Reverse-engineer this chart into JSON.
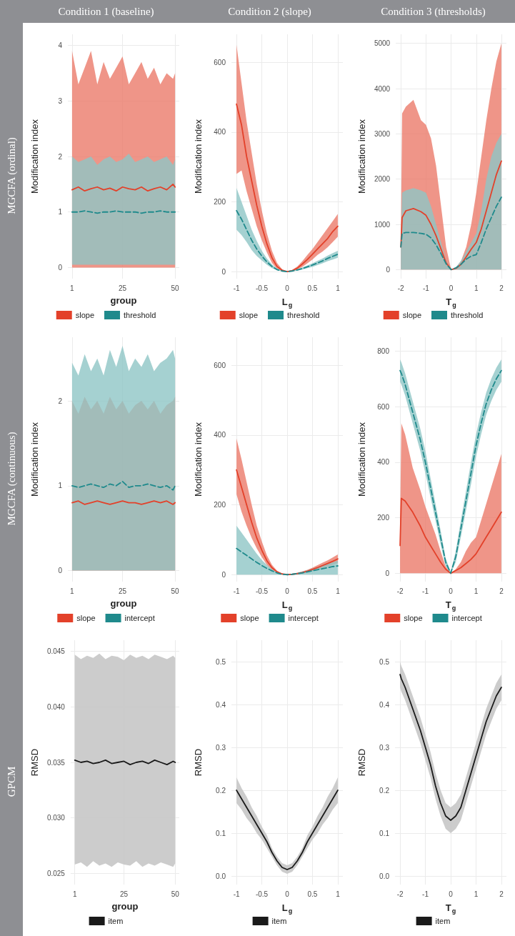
{
  "chart_data": [
    {
      "type": "line",
      "title": "Condition 1 (baseline)",
      "annotations": [
        "MGCFA (ordinal)"
      ],
      "xlabel": "group",
      "ylabel": "Modification index",
      "x": [
        1,
        4,
        7,
        10,
        13,
        16,
        19,
        22,
        25,
        28,
        31,
        34,
        37,
        40,
        43,
        46,
        49,
        50
      ],
      "xlim": [
        -1,
        52
      ],
      "xticks": [
        1,
        25,
        50
      ],
      "ylim": [
        -0.2,
        4.2
      ],
      "yticks": [
        0,
        1,
        2,
        3,
        4
      ],
      "grid": true,
      "legend": "bottom",
      "series": [
        {
          "name": "slope",
          "color": "#e3412a",
          "line_style": "solid",
          "values": [
            1.4,
            1.45,
            1.38,
            1.42,
            1.45,
            1.4,
            1.43,
            1.38,
            1.45,
            1.42,
            1.4,
            1.45,
            1.38,
            1.42,
            1.45,
            1.4,
            1.5,
            1.45
          ],
          "lower": [
            0,
            0,
            0,
            0,
            0,
            0,
            0,
            0,
            0,
            0,
            0,
            0,
            0,
            0,
            0,
            0,
            0,
            0
          ],
          "upper": [
            3.9,
            3.3,
            3.6,
            3.9,
            3.3,
            3.7,
            3.4,
            3.6,
            3.8,
            3.3,
            3.5,
            3.7,
            3.4,
            3.6,
            3.3,
            3.5,
            3.4,
            3.5
          ]
        },
        {
          "name": "threshold",
          "color": "#1f8a8c",
          "line_style": "dashed",
          "values": [
            1.0,
            1.0,
            1.02,
            1.0,
            0.98,
            1.0,
            1.0,
            1.02,
            1.0,
            1.0,
            1.0,
            0.98,
            1.0,
            1.0,
            1.02,
            1.0,
            1.0,
            1.0
          ],
          "lower": [
            0.05,
            0.05,
            0.05,
            0.05,
            0.05,
            0.05,
            0.05,
            0.05,
            0.05,
            0.05,
            0.05,
            0.05,
            0.05,
            0.05,
            0.05,
            0.05,
            0.05,
            0.05
          ],
          "upper": [
            2.0,
            1.9,
            1.95,
            2.0,
            1.85,
            1.95,
            2.0,
            1.9,
            1.95,
            2.05,
            1.9,
            1.95,
            2.0,
            1.9,
            1.95,
            2.0,
            1.85,
            1.95
          ]
        }
      ]
    },
    {
      "type": "line",
      "title": "Condition 2 (slope)",
      "xlabel": "L$_{g}$",
      "ylabel": "Modification index",
      "x": [
        -1,
        -0.9,
        -0.8,
        -0.7,
        -0.6,
        -0.5,
        -0.4,
        -0.3,
        -0.2,
        -0.1,
        0,
        0.1,
        0.2,
        0.3,
        0.4,
        0.5,
        0.6,
        0.7,
        0.8,
        0.9,
        1
      ],
      "xlim": [
        -1.1,
        1.1
      ],
      "xticks": [
        -1,
        -0.5,
        0,
        0.5,
        1
      ],
      "ylim": [
        -20,
        680
      ],
      "yticks": [
        0,
        200,
        400,
        600
      ],
      "grid": true,
      "legend": "bottom",
      "series": [
        {
          "name": "slope",
          "color": "#e3412a",
          "line_style": "solid",
          "values": [
            480,
            420,
            330,
            260,
            190,
            130,
            80,
            40,
            15,
            4,
            0,
            3,
            10,
            22,
            35,
            50,
            65,
            80,
            95,
            115,
            130
          ],
          "lower": [
            280,
            290,
            230,
            180,
            130,
            90,
            55,
            25,
            8,
            2,
            0,
            1,
            6,
            14,
            24,
            35,
            48,
            58,
            70,
            85,
            100
          ],
          "upper": [
            650,
            540,
            430,
            340,
            250,
            175,
            110,
            60,
            25,
            7,
            1,
            5,
            15,
            30,
            48,
            65,
            85,
            105,
            125,
            145,
            165
          ]
        },
        {
          "name": "threshold",
          "color": "#1f8a8c",
          "line_style": "dashed",
          "values": [
            175,
            150,
            120,
            90,
            65,
            45,
            28,
            15,
            6,
            2,
            0,
            2,
            5,
            9,
            14,
            19,
            25,
            31,
            38,
            44,
            50
          ],
          "lower": [
            120,
            105,
            85,
            62,
            45,
            32,
            20,
            10,
            4,
            1,
            0,
            1,
            3,
            6,
            10,
            14,
            19,
            24,
            30,
            35,
            40
          ],
          "upper": [
            240,
            200,
            160,
            120,
            88,
            60,
            38,
            21,
            9,
            3,
            1,
            3,
            7,
            12,
            18,
            24,
            31,
            38,
            46,
            53,
            60
          ]
        }
      ]
    },
    {
      "type": "line",
      "title": "Condition 3 (thresholds)",
      "xlabel": "T$_{g}$",
      "ylabel": "Modification index",
      "x": [
        -2,
        -1.95,
        -1.8,
        -1.5,
        -1.2,
        -1,
        -0.8,
        -0.6,
        -0.4,
        -0.2,
        0,
        0.2,
        0.4,
        0.6,
        0.8,
        1,
        1.2,
        1.4,
        1.6,
        1.8,
        2
      ],
      "xlim": [
        -2.2,
        2.2
      ],
      "xticks": [
        -2,
        -1,
        0,
        1,
        2
      ],
      "ylim": [
        -200,
        5200
      ],
      "yticks": [
        0,
        1000,
        2000,
        3000,
        4000,
        5000
      ],
      "grid": true,
      "legend": "bottom",
      "series": [
        {
          "name": "slope",
          "color": "#e3412a",
          "line_style": "solid",
          "values": [
            500,
            1150,
            1300,
            1350,
            1280,
            1200,
            1000,
            750,
            450,
            150,
            0,
            30,
            120,
            280,
            450,
            600,
            900,
            1300,
            1700,
            2100,
            2400
          ],
          "lower": [
            0,
            0,
            0,
            0,
            0,
            0,
            0,
            0,
            0,
            0,
            0,
            0,
            0,
            0,
            0,
            0,
            0,
            0,
            0,
            0,
            0
          ],
          "upper": [
            600,
            3450,
            3600,
            3750,
            3300,
            3200,
            2900,
            2300,
            1400,
            500,
            0,
            50,
            200,
            500,
            1000,
            1700,
            2500,
            3300,
            4000,
            4600,
            5000
          ]
        },
        {
          "name": "threshold",
          "color": "#1f8a8c",
          "line_style": "dashed",
          "values": [
            500,
            800,
            820,
            820,
            800,
            780,
            700,
            550,
            350,
            130,
            0,
            40,
            120,
            230,
            300,
            330,
            600,
            900,
            1150,
            1400,
            1600
          ],
          "lower": [
            0,
            0,
            0,
            0,
            0,
            0,
            0,
            0,
            0,
            0,
            0,
            0,
            0,
            0,
            0,
            0,
            0,
            0,
            0,
            0,
            0
          ],
          "upper": [
            600,
            1700,
            1750,
            1800,
            1750,
            1700,
            1400,
            1000,
            600,
            200,
            0,
            60,
            200,
            400,
            600,
            800,
            1300,
            2000,
            2500,
            2800,
            3000
          ]
        }
      ]
    },
    {
      "type": "line",
      "annotations": [
        "MGCFA (continuous)"
      ],
      "xlabel": "group",
      "ylabel": "Modification index",
      "x": [
        1,
        4,
        7,
        10,
        13,
        16,
        19,
        22,
        25,
        28,
        31,
        34,
        37,
        40,
        43,
        46,
        49,
        50
      ],
      "xlim": [
        -1,
        52
      ],
      "xticks": [
        1,
        25,
        50
      ],
      "ylim": [
        -0.13,
        2.75
      ],
      "yticks": [
        0,
        1,
        2
      ],
      "grid": true,
      "legend": "bottom",
      "series": [
        {
          "name": "slope",
          "color": "#e3412a",
          "line_style": "solid",
          "values": [
            0.8,
            0.82,
            0.78,
            0.8,
            0.82,
            0.8,
            0.78,
            0.8,
            0.82,
            0.8,
            0.8,
            0.78,
            0.8,
            0.82,
            0.8,
            0.82,
            0.78,
            0.8
          ],
          "lower": [
            0,
            0,
            0,
            0,
            0,
            0,
            0,
            0,
            0,
            0,
            0,
            0,
            0,
            0,
            0,
            0,
            0,
            0
          ],
          "upper": [
            2.0,
            1.85,
            2.05,
            1.9,
            2.0,
            1.85,
            2.05,
            1.9,
            2.0,
            1.85,
            1.95,
            2.0,
            1.9,
            2.0,
            1.85,
            1.95,
            2.0,
            2.05
          ]
        },
        {
          "name": "intercept",
          "color": "#1f8a8c",
          "line_style": "dashed",
          "values": [
            1.0,
            0.98,
            1.0,
            1.02,
            1.0,
            0.98,
            1.02,
            1.0,
            1.05,
            0.98,
            1.0,
            1.0,
            1.02,
            1.0,
            0.98,
            1.0,
            0.95,
            1.0
          ],
          "lower": [
            0,
            0,
            0,
            0,
            0,
            0,
            0,
            0,
            0,
            0,
            0,
            0,
            0,
            0,
            0,
            0,
            0,
            0
          ],
          "upper": [
            2.45,
            2.3,
            2.55,
            2.35,
            2.5,
            2.3,
            2.6,
            2.4,
            2.65,
            2.35,
            2.5,
            2.4,
            2.55,
            2.35,
            2.45,
            2.5,
            2.6,
            2.5
          ]
        }
      ]
    },
    {
      "type": "line",
      "xlabel": "L$_{g}$",
      "ylabel": "Modification index",
      "x": [
        -1,
        -0.9,
        -0.8,
        -0.7,
        -0.6,
        -0.5,
        -0.4,
        -0.3,
        -0.2,
        -0.1,
        0,
        0.1,
        0.2,
        0.3,
        0.4,
        0.5,
        0.6,
        0.7,
        0.8,
        0.9,
        1
      ],
      "xlim": [
        -1.1,
        1.1
      ],
      "xticks": [
        -1,
        -0.5,
        0,
        0.5,
        1
      ],
      "ylim": [
        -20,
        680
      ],
      "yticks": [
        0,
        200,
        400,
        600
      ],
      "grid": true,
      "legend": "bottom",
      "series": [
        {
          "name": "slope",
          "color": "#e3412a",
          "line_style": "solid",
          "values": [
            300,
            250,
            200,
            150,
            105,
            70,
            40,
            20,
            8,
            2,
            0,
            1,
            3,
            6,
            10,
            15,
            20,
            26,
            32,
            38,
            45
          ],
          "lower": [
            230,
            180,
            140,
            105,
            75,
            50,
            28,
            13,
            5,
            1,
            0,
            0,
            2,
            4,
            7,
            10,
            14,
            18,
            23,
            28,
            33
          ],
          "upper": [
            390,
            330,
            265,
            200,
            140,
            95,
            55,
            28,
            11,
            3,
            1,
            2,
            5,
            9,
            14,
            20,
            27,
            34,
            41,
            49,
            58
          ]
        },
        {
          "name": "intercept",
          "color": "#1f8a8c",
          "line_style": "dashed",
          "values": [
            75,
            65,
            55,
            45,
            35,
            26,
            18,
            11,
            5,
            1,
            0,
            1,
            3,
            5,
            8,
            11,
            14,
            17,
            20,
            23,
            25
          ],
          "lower": [
            0,
            0,
            0,
            0,
            0,
            0,
            0,
            0,
            0,
            0,
            0,
            0,
            0,
            0,
            0,
            0,
            0,
            0,
            0,
            0,
            0
          ],
          "upper": [
            140,
            120,
            100,
            80,
            60,
            42,
            28,
            16,
            7,
            2,
            1,
            2,
            5,
            9,
            13,
            18,
            22,
            27,
            31,
            36,
            40
          ]
        }
      ]
    },
    {
      "type": "line",
      "xlabel": "T$_{g}$",
      "ylabel": "Modification index",
      "x": [
        -2,
        -1.95,
        -1.8,
        -1.5,
        -1.2,
        -1,
        -0.8,
        -0.6,
        -0.4,
        -0.2,
        0,
        0.2,
        0.4,
        0.6,
        0.8,
        1,
        1.2,
        1.4,
        1.6,
        1.8,
        2
      ],
      "xlim": [
        -2.2,
        2.2
      ],
      "xticks": [
        -2,
        -1,
        0,
        1,
        2
      ],
      "ylim": [
        -30,
        850
      ],
      "yticks": [
        0,
        200,
        400,
        600,
        800
      ],
      "grid": true,
      "legend": "bottom",
      "series": [
        {
          "name": "slope",
          "color": "#e3412a",
          "line_style": "solid",
          "values": [
            100,
            270,
            260,
            220,
            170,
            130,
            100,
            70,
            40,
            15,
            0,
            10,
            20,
            35,
            50,
            70,
            100,
            130,
            160,
            190,
            220
          ],
          "lower": [
            0,
            0,
            0,
            0,
            0,
            0,
            0,
            0,
            0,
            0,
            0,
            0,
            0,
            0,
            0,
            0,
            0,
            0,
            0,
            0,
            0
          ],
          "upper": [
            160,
            540,
            500,
            380,
            300,
            240,
            190,
            140,
            80,
            25,
            0,
            15,
            40,
            80,
            110,
            130,
            190,
            250,
            310,
            370,
            430
          ]
        },
        {
          "name": "intercept",
          "color": "#1f8a8c",
          "line_style": "dashed",
          "values": [
            730,
            720,
            680,
            580,
            480,
            400,
            310,
            220,
            130,
            40,
            0,
            60,
            160,
            260,
            360,
            460,
            540,
            610,
            660,
            700,
            730
          ],
          "lower": [
            690,
            680,
            640,
            540,
            440,
            360,
            275,
            190,
            105,
            25,
            0,
            40,
            130,
            225,
            320,
            420,
            500,
            570,
            620,
            660,
            690
          ],
          "upper": [
            770,
            760,
            720,
            620,
            520,
            440,
            345,
            250,
            155,
            55,
            5,
            80,
            190,
            295,
            400,
            500,
            580,
            650,
            700,
            740,
            770
          ]
        }
      ]
    },
    {
      "type": "line",
      "annotations": [
        "GPCM"
      ],
      "xlabel": "group",
      "ylabel": "RMSD",
      "x": [
        1,
        4,
        7,
        10,
        13,
        16,
        19,
        22,
        25,
        28,
        31,
        34,
        37,
        40,
        43,
        46,
        49,
        50
      ],
      "xlim": [
        -1,
        52
      ],
      "xticks": [
        1,
        25,
        50
      ],
      "ylim": [
        0.024,
        0.046
      ],
      "yticks": [
        0.025,
        {
          "value": 0.03,
          "label": "0.030"
        },
        0.035,
        {
          "value": 0.04,
          "label": "0.040"
        },
        0.045
      ],
      "grid": true,
      "legend": "bottom",
      "series": [
        {
          "name": "item",
          "color": "#1a1a1a",
          "line_style": "solid",
          "values": [
            0.0352,
            0.035,
            0.0351,
            0.0349,
            0.035,
            0.0352,
            0.0349,
            0.035,
            0.0351,
            0.0348,
            0.035,
            0.0351,
            0.0349,
            0.0352,
            0.035,
            0.0348,
            0.0351,
            0.035
          ],
          "lower": [
            0.0258,
            0.026,
            0.0256,
            0.0261,
            0.0257,
            0.0259,
            0.0256,
            0.026,
            0.0258,
            0.0257,
            0.0261,
            0.0256,
            0.0259,
            0.0257,
            0.026,
            0.0258,
            0.0256,
            0.0259
          ],
          "upper": [
            0.0447,
            0.0443,
            0.0446,
            0.0444,
            0.0448,
            0.0443,
            0.0446,
            0.0445,
            0.0442,
            0.0447,
            0.0444,
            0.0446,
            0.0443,
            0.0447,
            0.0445,
            0.0443,
            0.0446,
            0.0444
          ]
        }
      ]
    },
    {
      "type": "line",
      "xlabel": "L$_{g}$",
      "ylabel": "RMSD",
      "x": [
        -1,
        -0.9,
        -0.8,
        -0.7,
        -0.6,
        -0.5,
        -0.4,
        -0.3,
        -0.2,
        -0.1,
        0,
        0.1,
        0.2,
        0.3,
        0.4,
        0.5,
        0.6,
        0.7,
        0.8,
        0.9,
        1
      ],
      "xlim": [
        -1.1,
        1.1
      ],
      "xticks": [
        -1,
        -0.5,
        0,
        0.5,
        1
      ],
      "ylim": [
        -0.02,
        0.55
      ],
      "yticks": [
        {
          "value": 0,
          "label": "0.0"
        },
        0.1,
        0.2,
        0.3,
        0.4,
        0.5
      ],
      "grid": true,
      "legend": "bottom",
      "series": [
        {
          "name": "item",
          "color": "#1a1a1a",
          "line_style": "solid",
          "values": [
            0.2,
            0.18,
            0.16,
            0.14,
            0.12,
            0.1,
            0.08,
            0.055,
            0.035,
            0.02,
            0.015,
            0.02,
            0.035,
            0.055,
            0.08,
            0.1,
            0.12,
            0.14,
            0.16,
            0.18,
            0.2
          ],
          "lower": [
            0.17,
            0.155,
            0.135,
            0.12,
            0.1,
            0.085,
            0.065,
            0.045,
            0.025,
            0.01,
            0.005,
            0.01,
            0.025,
            0.045,
            0.065,
            0.085,
            0.1,
            0.12,
            0.135,
            0.155,
            0.17
          ],
          "upper": [
            0.23,
            0.205,
            0.185,
            0.16,
            0.14,
            0.115,
            0.095,
            0.065,
            0.045,
            0.03,
            0.025,
            0.03,
            0.045,
            0.065,
            0.095,
            0.115,
            0.14,
            0.16,
            0.185,
            0.205,
            0.23
          ]
        }
      ]
    },
    {
      "type": "line",
      "xlabel": "T$_{g}$",
      "ylabel": "RMSD",
      "x": [
        -2,
        -1.95,
        -1.8,
        -1.5,
        -1.2,
        -1,
        -0.8,
        -0.6,
        -0.4,
        -0.2,
        0,
        0.2,
        0.4,
        0.6,
        0.8,
        1,
        1.2,
        1.4,
        1.6,
        1.8,
        2
      ],
      "xlim": [
        -2.2,
        2.2
      ],
      "xticks": [
        -2,
        -1,
        0,
        1,
        2
      ],
      "ylim": [
        -0.02,
        0.55
      ],
      "yticks": [
        {
          "value": 0,
          "label": "0.0"
        },
        0.1,
        0.2,
        0.3,
        0.4,
        0.5
      ],
      "grid": true,
      "legend": "bottom",
      "series": [
        {
          "name": "item",
          "color": "#1a1a1a",
          "line_style": "solid",
          "values": [
            0.47,
            0.46,
            0.44,
            0.39,
            0.34,
            0.3,
            0.26,
            0.21,
            0.17,
            0.14,
            0.13,
            0.14,
            0.16,
            0.2,
            0.24,
            0.28,
            0.32,
            0.36,
            0.39,
            0.42,
            0.44
          ],
          "lower": [
            0.44,
            0.43,
            0.41,
            0.36,
            0.31,
            0.27,
            0.23,
            0.18,
            0.14,
            0.11,
            0.1,
            0.11,
            0.13,
            0.17,
            0.21,
            0.25,
            0.29,
            0.33,
            0.36,
            0.39,
            0.41
          ],
          "upper": [
            0.5,
            0.49,
            0.47,
            0.42,
            0.37,
            0.33,
            0.29,
            0.24,
            0.2,
            0.17,
            0.16,
            0.17,
            0.19,
            0.23,
            0.27,
            0.31,
            0.35,
            0.39,
            0.42,
            0.45,
            0.47
          ]
        }
      ]
    }
  ]
}
